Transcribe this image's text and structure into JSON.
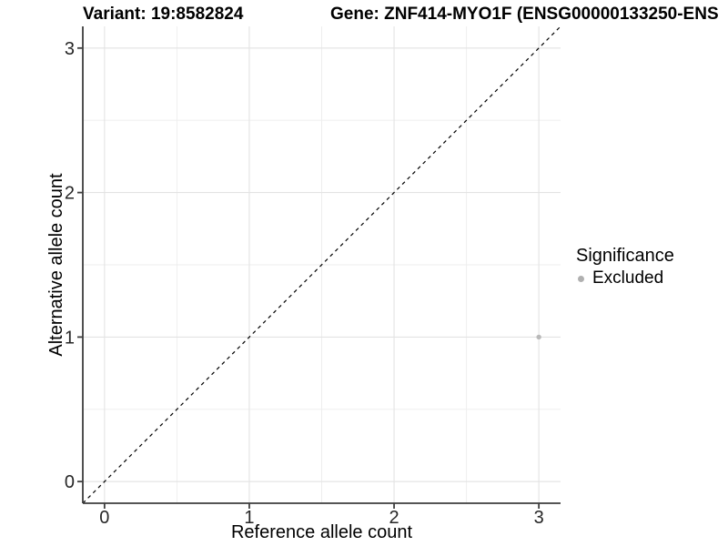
{
  "chart_data": {
    "type": "scatter",
    "title_left": "Variant: 19:8582824",
    "title_right": "Gene: ZNF414-MYO1F (ENSG00000133250-ENS",
    "xlabel": "Reference allele count",
    "ylabel": "Alternative allele count",
    "xlim": [
      -0.15,
      3.15
    ],
    "ylim": [
      -0.15,
      3.15
    ],
    "x_major_ticks": [
      0,
      1,
      2,
      3
    ],
    "x_minor_ticks": [
      0.5,
      1.5,
      2.5
    ],
    "y_major_ticks": [
      0,
      1,
      2,
      3
    ],
    "y_minor_ticks": [
      0.5,
      1.5,
      2.5
    ],
    "grid": true,
    "identity_line": {
      "style": "dashed",
      "x": [
        -0.15,
        3.15
      ],
      "y": [
        -0.15,
        3.15
      ],
      "color": "#000000"
    },
    "points": [
      {
        "x": 3,
        "y": 1,
        "series": "Excluded"
      }
    ],
    "point_color": "#b9b9b9",
    "point_radius": 2.7,
    "legend": {
      "title": "Significance",
      "position": "right",
      "entries": [
        {
          "label": "Excluded",
          "color": "#b0b0b0"
        }
      ]
    },
    "style": {
      "axis_color": "#3d3d3d",
      "grid_major_color": "#e3e3e3",
      "grid_minor_color": "#ededed",
      "tick_label_color": "#262626",
      "background": "#ffffff"
    }
  }
}
